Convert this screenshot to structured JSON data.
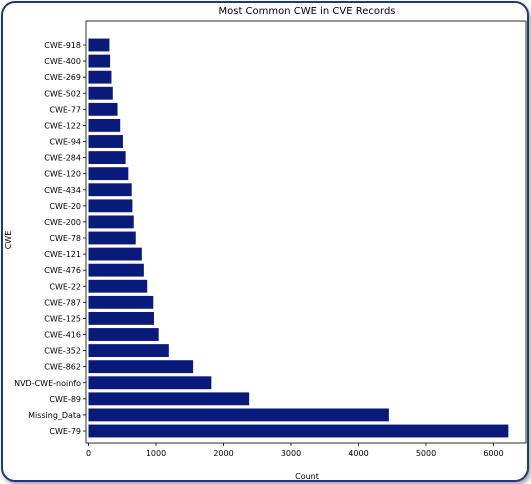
{
  "chart_data": {
    "type": "bar",
    "orientation": "horizontal",
    "title": "Most Common CWE in CVE Records",
    "xlabel": "Count",
    "ylabel": "CWE",
    "xlim": [
      0,
      6500
    ],
    "xticks": [
      0,
      1000,
      2000,
      3000,
      4000,
      5000,
      6000
    ],
    "grid": false,
    "bar_color": "#0a1a7a",
    "categories": [
      "CWE-79",
      "Missing_Data",
      "CWE-89",
      "NVD-CWE-noinfo",
      "CWE-862",
      "CWE-352",
      "CWE-416",
      "CWE-125",
      "CWE-787",
      "CWE-22",
      "CWE-476",
      "CWE-121",
      "CWE-78",
      "CWE-200",
      "CWE-20",
      "CWE-434",
      "CWE-120",
      "CWE-284",
      "CWE-94",
      "CWE-122",
      "CWE-77",
      "CWE-502",
      "CWE-269",
      "CWE-400",
      "CWE-918"
    ],
    "values": [
      6220,
      4450,
      2380,
      1820,
      1550,
      1190,
      1040,
      970,
      960,
      870,
      820,
      790,
      700,
      670,
      650,
      640,
      590,
      550,
      510,
      470,
      430,
      360,
      340,
      320,
      310
    ]
  }
}
